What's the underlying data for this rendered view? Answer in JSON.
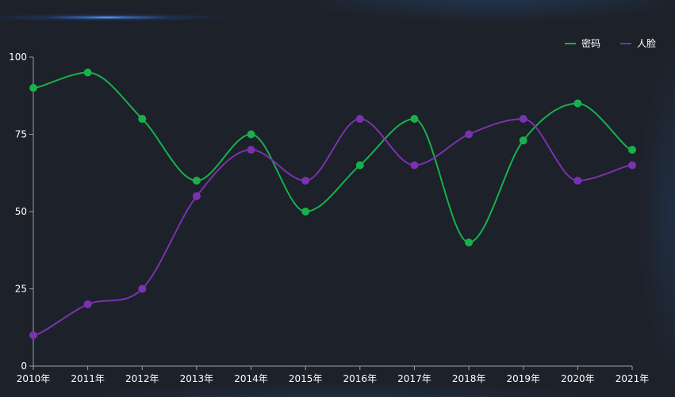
{
  "chart_data": {
    "type": "line",
    "categories": [
      "2010年",
      "2011年",
      "2012年",
      "2013年",
      "2014年",
      "2015年",
      "2016年",
      "2017年",
      "2018年",
      "2019年",
      "2020年",
      "2021年"
    ],
    "series": [
      {
        "name": "密码",
        "color": "#18b04c",
        "values": [
          90,
          95,
          80,
          60,
          75,
          50,
          65,
          80,
          40,
          73,
          85,
          70
        ]
      },
      {
        "name": "人脸",
        "color": "#7a32b0",
        "values": [
          10,
          20,
          25,
          55,
          70,
          60,
          80,
          65,
          75,
          80,
          60,
          65
        ]
      }
    ],
    "ylim": [
      0,
      100
    ],
    "yticks": [
      0,
      25,
      50,
      75,
      100
    ],
    "smooth": true,
    "grid": false,
    "legend_position": "top-right",
    "title": "",
    "xlabel": "",
    "ylabel": ""
  },
  "colors": {
    "background": "#1d2129",
    "axis": "#9aa0a8",
    "text": "#ffffff"
  }
}
